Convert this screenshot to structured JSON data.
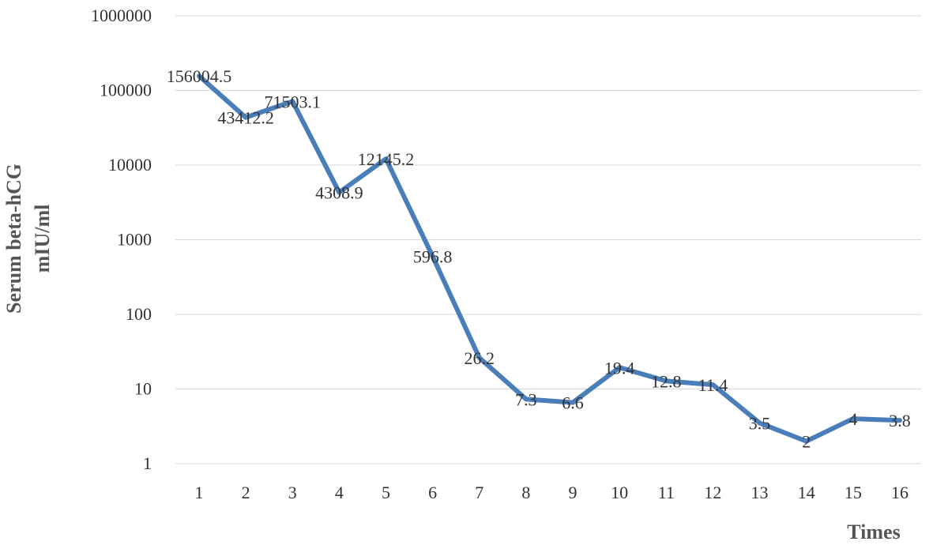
{
  "chart_data": {
    "type": "line",
    "x": [
      "1",
      "2",
      "3",
      "4",
      "5",
      "6",
      "7",
      "8",
      "9",
      "10",
      "11",
      "12",
      "13",
      "14",
      "15",
      "16"
    ],
    "series": [
      {
        "values": [
          156004.5,
          43412.2,
          71503.1,
          4308.9,
          12145.2,
          596.8,
          26.2,
          7.3,
          6.6,
          19.4,
          12.8,
          11.4,
          3.5,
          2,
          4,
          3.8
        ],
        "labels": [
          "156004.5",
          "43412.2",
          "71503.1",
          "4308.9",
          "12145.2",
          "596.8",
          "26.2",
          "7.3",
          "6.6",
          "19.4",
          "12.8",
          "11.4",
          "3.5",
          "2",
          "4",
          "3.8"
        ],
        "color": "#4a7ebb"
      }
    ],
    "ylabel_line1": "Serum beta-hCG",
    "ylabel_line2": "mIU/ml",
    "xlabel": "Times",
    "yscale": "log",
    "ylim": [
      1,
      1000000
    ],
    "yticks": [
      "1",
      "10",
      "100",
      "1000",
      "10000",
      "100000",
      "1000000"
    ],
    "grid": true,
    "legend": "none"
  }
}
